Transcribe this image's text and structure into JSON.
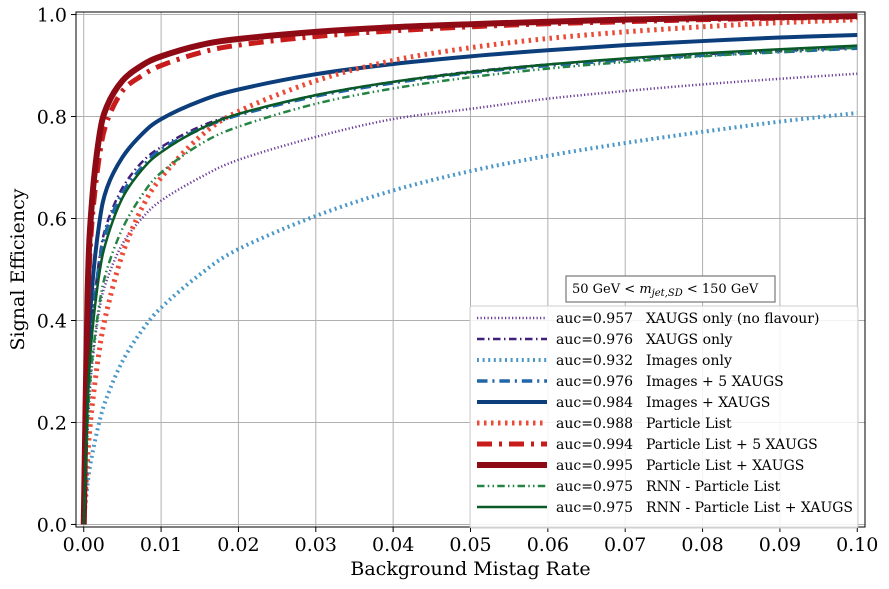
{
  "chart_data": {
    "type": "line",
    "title": "",
    "xlabel": "Background Mistag Rate",
    "ylabel": "Signal Efficiency",
    "xlim": [
      -0.001,
      0.101
    ],
    "ylim": [
      -0.005,
      1.005
    ],
    "xticks": [
      0.0,
      0.01,
      0.02,
      0.03,
      0.04,
      0.05,
      0.06,
      0.07,
      0.08,
      0.09,
      0.1
    ],
    "xtick_labels": [
      "0.00",
      "0.01",
      "0.02",
      "0.03",
      "0.04",
      "0.05",
      "0.06",
      "0.07",
      "0.08",
      "0.09",
      "0.10"
    ],
    "yticks": [
      0.0,
      0.2,
      0.4,
      0.6,
      0.8,
      1.0
    ],
    "ytick_labels": [
      "0.0",
      "0.2",
      "0.4",
      "0.6",
      "0.8",
      "1.0"
    ],
    "grid": true,
    "legend_placement": "bottom-right",
    "annotation": {
      "prefix": "50 GeV < ",
      "symbol": "m",
      "subscript": "jet,SD",
      "suffix": " < 150 GeV"
    },
    "series": [
      {
        "name": "XAUGS only (no flavour)",
        "auc": "auc=0.957",
        "color": "#6a3d9a",
        "dash": "dotted",
        "width": 2.5,
        "x": [
          0,
          0.0005,
          0.001,
          0.002,
          0.003,
          0.005,
          0.0075,
          0.01,
          0.015,
          0.02,
          0.03,
          0.04,
          0.05,
          0.06,
          0.07,
          0.08,
          0.09,
          0.1
        ],
        "y": [
          0,
          0.18,
          0.3,
          0.42,
          0.48,
          0.55,
          0.6,
          0.635,
          0.68,
          0.715,
          0.76,
          0.795,
          0.815,
          0.835,
          0.85,
          0.863,
          0.874,
          0.884
        ]
      },
      {
        "name": "XAUGS only",
        "auc": "auc=0.976",
        "color": "#3f1f7a",
        "dash": "dashdot",
        "width": 2.5,
        "x": [
          0,
          0.0005,
          0.001,
          0.002,
          0.003,
          0.005,
          0.0075,
          0.01,
          0.015,
          0.02,
          0.03,
          0.04,
          0.05,
          0.06,
          0.07,
          0.08,
          0.09,
          0.1
        ],
        "y": [
          0,
          0.25,
          0.38,
          0.52,
          0.59,
          0.66,
          0.71,
          0.74,
          0.78,
          0.805,
          0.842,
          0.868,
          0.888,
          0.902,
          0.913,
          0.922,
          0.929,
          0.935
        ]
      },
      {
        "name": "Images only",
        "auc": "auc=0.932",
        "color": "#4a98c9",
        "dash": "dotted",
        "width": 4,
        "x": [
          0,
          0.0005,
          0.001,
          0.002,
          0.003,
          0.005,
          0.0075,
          0.01,
          0.015,
          0.02,
          0.03,
          0.04,
          0.05,
          0.06,
          0.07,
          0.08,
          0.09,
          0.1
        ],
        "y": [
          0,
          0.08,
          0.13,
          0.2,
          0.25,
          0.32,
          0.38,
          0.425,
          0.49,
          0.54,
          0.605,
          0.655,
          0.693,
          0.723,
          0.748,
          0.77,
          0.79,
          0.807
        ]
      },
      {
        "name": "Images + 5 XAUGS",
        "auc": "auc=0.976",
        "color": "#2066a8",
        "dash": "dashdot",
        "width": 3.5,
        "x": [
          0,
          0.0005,
          0.001,
          0.002,
          0.003,
          0.005,
          0.0075,
          0.01,
          0.015,
          0.02,
          0.03,
          0.04,
          0.05,
          0.06,
          0.07,
          0.08,
          0.09,
          0.1
        ],
        "y": [
          0,
          0.25,
          0.38,
          0.51,
          0.58,
          0.65,
          0.7,
          0.735,
          0.775,
          0.803,
          0.84,
          0.866,
          0.886,
          0.9,
          0.911,
          0.92,
          0.927,
          0.934
        ]
      },
      {
        "name": "Images + XAUGS",
        "auc": "auc=0.984",
        "color": "#0b3e7a",
        "dash": "solid",
        "width": 4,
        "x": [
          0,
          0.0005,
          0.001,
          0.002,
          0.003,
          0.005,
          0.0075,
          0.01,
          0.015,
          0.02,
          0.03,
          0.04,
          0.05,
          0.06,
          0.07,
          0.08,
          0.09,
          0.1
        ],
        "y": [
          0,
          0.3,
          0.45,
          0.59,
          0.66,
          0.72,
          0.765,
          0.795,
          0.83,
          0.853,
          0.883,
          0.903,
          0.918,
          0.93,
          0.94,
          0.948,
          0.955,
          0.96
        ]
      },
      {
        "name": "Particle List",
        "auc": "auc=0.988",
        "color": "#ea4a36",
        "dash": "dotted",
        "width": 5,
        "x": [
          0,
          0.0005,
          0.001,
          0.002,
          0.003,
          0.005,
          0.0075,
          0.01,
          0.015,
          0.02,
          0.03,
          0.04,
          0.05,
          0.06,
          0.07,
          0.08,
          0.09,
          0.1
        ],
        "y": [
          0,
          0.13,
          0.22,
          0.34,
          0.42,
          0.53,
          0.62,
          0.68,
          0.76,
          0.81,
          0.87,
          0.91,
          0.935,
          0.953,
          0.966,
          0.976,
          0.984,
          0.99
        ]
      },
      {
        "name": "Particle List + 5 XAUGS",
        "auc": "auc=0.994",
        "color": "#c81c1c",
        "dash": "dashdot",
        "width": 5,
        "x": [
          0,
          0.0005,
          0.001,
          0.002,
          0.003,
          0.005,
          0.0075,
          0.01,
          0.015,
          0.02,
          0.03,
          0.04,
          0.05,
          0.06,
          0.07,
          0.08,
          0.09,
          0.1
        ],
        "y": [
          0,
          0.4,
          0.58,
          0.72,
          0.79,
          0.85,
          0.88,
          0.9,
          0.925,
          0.94,
          0.957,
          0.968,
          0.976,
          0.982,
          0.986,
          0.99,
          0.993,
          0.995
        ]
      },
      {
        "name": "Particle List + XAUGS",
        "auc": "auc=0.995",
        "color": "#8e0b16",
        "dash": "solid",
        "width": 6,
        "x": [
          0,
          0.0005,
          0.001,
          0.002,
          0.003,
          0.005,
          0.0075,
          0.01,
          0.015,
          0.02,
          0.03,
          0.04,
          0.05,
          0.06,
          0.07,
          0.08,
          0.09,
          0.1
        ],
        "y": [
          0,
          0.45,
          0.62,
          0.76,
          0.82,
          0.87,
          0.9,
          0.918,
          0.94,
          0.952,
          0.966,
          0.975,
          0.981,
          0.986,
          0.99,
          0.993,
          0.995,
          0.997
        ]
      },
      {
        "name": "RNN - Particle List",
        "auc": "auc=0.975",
        "color": "#238443",
        "dash": "dashdotdot",
        "width": 2.5,
        "x": [
          0,
          0.0005,
          0.001,
          0.002,
          0.003,
          0.005,
          0.0075,
          0.01,
          0.015,
          0.02,
          0.03,
          0.04,
          0.05,
          0.06,
          0.07,
          0.08,
          0.09,
          0.1
        ],
        "y": [
          0,
          0.2,
          0.31,
          0.43,
          0.5,
          0.58,
          0.645,
          0.69,
          0.745,
          0.78,
          0.825,
          0.855,
          0.877,
          0.894,
          0.907,
          0.918,
          0.927,
          0.935
        ]
      },
      {
        "name": "RNN - Particle List + XAUGS",
        "auc": "auc=0.975",
        "color": "#0a5a28",
        "dash": "solid",
        "width": 2.5,
        "x": [
          0,
          0.0005,
          0.001,
          0.002,
          0.003,
          0.005,
          0.0075,
          0.01,
          0.015,
          0.02,
          0.03,
          0.04,
          0.05,
          0.06,
          0.07,
          0.08,
          0.09,
          0.1
        ],
        "y": [
          0,
          0.24,
          0.36,
          0.49,
          0.56,
          0.64,
          0.695,
          0.73,
          0.775,
          0.805,
          0.842,
          0.868,
          0.887,
          0.902,
          0.914,
          0.924,
          0.932,
          0.939
        ]
      }
    ]
  }
}
